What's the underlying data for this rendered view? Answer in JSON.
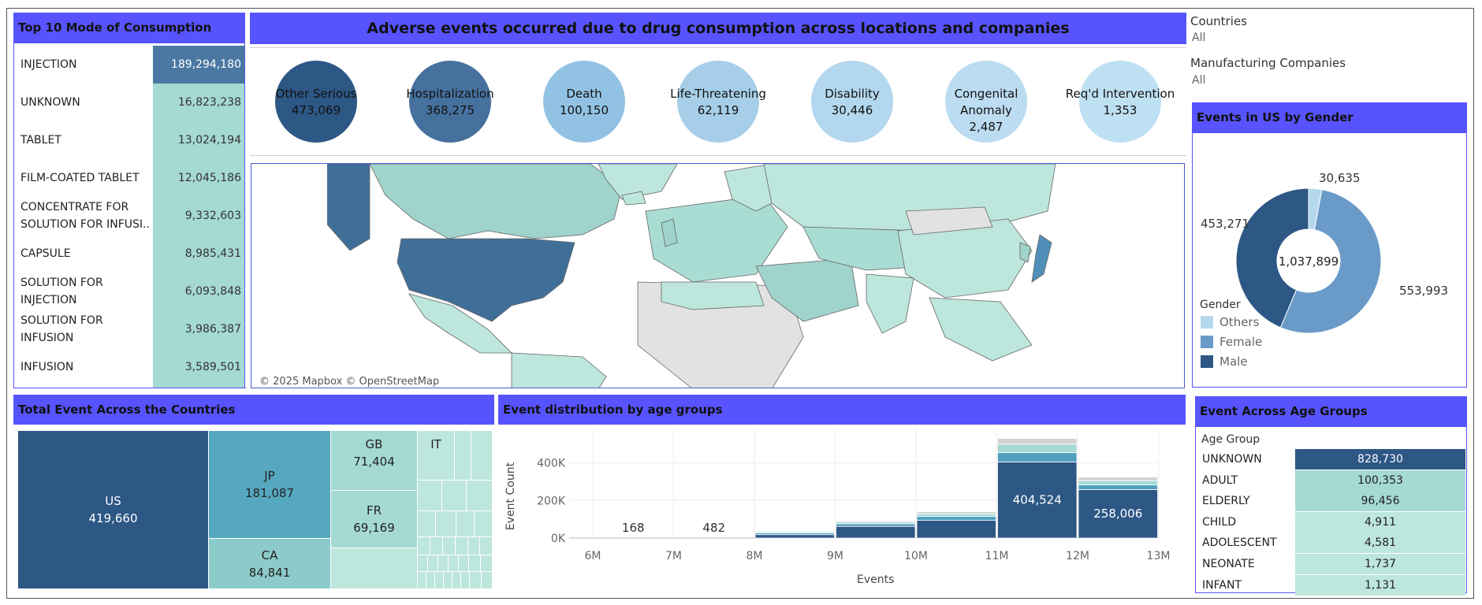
{
  "title": "Adverse  events  occurred  due to  drug  consumption  across locations and companies",
  "filters": {
    "countries_label": "Countries",
    "countries_value": "All",
    "companies_label": "Manufacturing Companies",
    "companies_value": "All"
  },
  "panels": {
    "consumption": "Top 10 Mode of Consumption",
    "gender": "Events in US by Gender",
    "countries": "Total Event Across the Countries",
    "age_dist": "Event distribution by age groups",
    "age_groups": "Event Across Age Groups"
  },
  "colors": {
    "header": "#5754ff",
    "dark": "#2d5785",
    "mid": "#4a78a2",
    "light_teal": "#a5d9d3",
    "pale_teal": "#bde6dc"
  },
  "map_attribution": "© 2025 Mapbox © OpenStreetMap",
  "chart_data": [
    {
      "type": "table",
      "name": "consumption",
      "rows": [
        {
          "label": "INJECTION",
          "value": "189,294,180",
          "n": 189294180
        },
        {
          "label": "UNKNOWN",
          "value": "16,823,238",
          "n": 16823238
        },
        {
          "label": "TABLET",
          "value": "13,024,194",
          "n": 13024194
        },
        {
          "label": "FILM-COATED TABLET",
          "value": "12,045,186",
          "n": 12045186
        },
        {
          "label": "CONCENTRATE FOR SOLUTION FOR INFUSI..",
          "value": "9,332,603",
          "n": 9332603
        },
        {
          "label": "CAPSULE",
          "value": "8,985,431",
          "n": 8985431
        },
        {
          "label": "SOLUTION FOR INJECTION",
          "value": "6,093,848",
          "n": 6093848
        },
        {
          "label": "SOLUTION FOR INFUSION",
          "value": "3,986,387",
          "n": 3986387
        },
        {
          "label": "INFUSION",
          "value": "3,589,501",
          "n": 3589501
        }
      ]
    },
    {
      "type": "bubble",
      "name": "outcomes",
      "items": [
        {
          "label": "Other Serious",
          "value": "473,069",
          "n": 473069
        },
        {
          "label": "Hospitalization",
          "value": "368,275",
          "n": 368275
        },
        {
          "label": "Death",
          "value": "100,150",
          "n": 100150
        },
        {
          "label": "Life-Threatening",
          "value": "62,119",
          "n": 62119
        },
        {
          "label": "Disability",
          "value": "30,446",
          "n": 30446
        },
        {
          "label": "Congenital Anomaly",
          "value": "2,487",
          "n": 2487
        },
        {
          "label": "Req'd Intervention",
          "value": "1,353",
          "n": 1353
        }
      ]
    },
    {
      "type": "pie",
      "name": "gender",
      "total": "1,037,899",
      "legend_title": "Gender",
      "slices": [
        {
          "name": "Others",
          "value": 30635,
          "label": "30,635",
          "color": "#b5d8ee"
        },
        {
          "name": "Female",
          "value": 553993,
          "label": "553,993",
          "color": "#6a9ac8"
        },
        {
          "name": "Male",
          "value": 453271,
          "label": "453,271",
          "color": "#2d5785"
        }
      ]
    },
    {
      "type": "treemap",
      "name": "countries",
      "cells": [
        {
          "label": "US",
          "value": "419,660",
          "n": 419660
        },
        {
          "label": "JP",
          "value": "181,087",
          "n": 181087
        },
        {
          "label": "CA",
          "value": "84,841",
          "n": 84841
        },
        {
          "label": "GB",
          "value": "71,404",
          "n": 71404
        },
        {
          "label": "FR",
          "value": "69,169",
          "n": 69169
        },
        {
          "label": "IT",
          "value": "",
          "n": 0
        }
      ]
    },
    {
      "type": "bar",
      "name": "age_distribution",
      "xlabel": "Events",
      "ylabel": "Event Count",
      "x_ticks": [
        "6M",
        "7M",
        "8M",
        "9M",
        "10M",
        "11M",
        "12M",
        "13M"
      ],
      "y_ticks": [
        "0K",
        "200K",
        "400K"
      ],
      "ylim": [
        0,
        480000
      ],
      "bins": [
        {
          "from": 6,
          "to": 7,
          "label": "168",
          "stack": [
            168
          ]
        },
        {
          "from": 7,
          "to": 8,
          "label": "482",
          "stack": [
            482
          ]
        },
        {
          "from": 8,
          "to": 9,
          "label": "",
          "stack": [
            18000,
            9000,
            6000,
            4000
          ]
        },
        {
          "from": 9,
          "to": 10,
          "label": "",
          "stack": [
            62000,
            14000,
            9000,
            7000
          ]
        },
        {
          "from": 10,
          "to": 11,
          "label": "",
          "stack": [
            95000,
            20000,
            14000,
            11000
          ]
        },
        {
          "from": 11,
          "to": 12,
          "label": "404,524",
          "stack": [
            404524,
            50000,
            45000,
            30000
          ]
        },
        {
          "from": 12,
          "to": 13,
          "label": "258,006",
          "stack": [
            258006,
            25000,
            22000,
            20000
          ]
        }
      ],
      "stack_colors": [
        "#2d5785",
        "#4f9fbd",
        "#a5d9d3",
        "#d3d3d3"
      ]
    },
    {
      "type": "table",
      "name": "age_groups",
      "column": "Age Group",
      "rows": [
        {
          "label": "UNKNOWN",
          "value": "828,730",
          "color": "#2d5785",
          "text": "#ffffff"
        },
        {
          "label": "ADULT",
          "value": "100,353",
          "color": "#a5d9d3",
          "text": "#222222"
        },
        {
          "label": "ELDERLY",
          "value": "96,456",
          "color": "#a5d9d3",
          "text": "#222222"
        },
        {
          "label": "CHILD",
          "value": "4,911",
          "color": "#bde6dc",
          "text": "#222222"
        },
        {
          "label": "ADOLESCENT",
          "value": "4,581",
          "color": "#bde6dc",
          "text": "#222222"
        },
        {
          "label": "NEONATE",
          "value": "1,737",
          "color": "#bde6dc",
          "text": "#222222"
        },
        {
          "label": "INFANT",
          "value": "1,131",
          "color": "#bde6dc",
          "text": "#222222"
        }
      ]
    }
  ]
}
